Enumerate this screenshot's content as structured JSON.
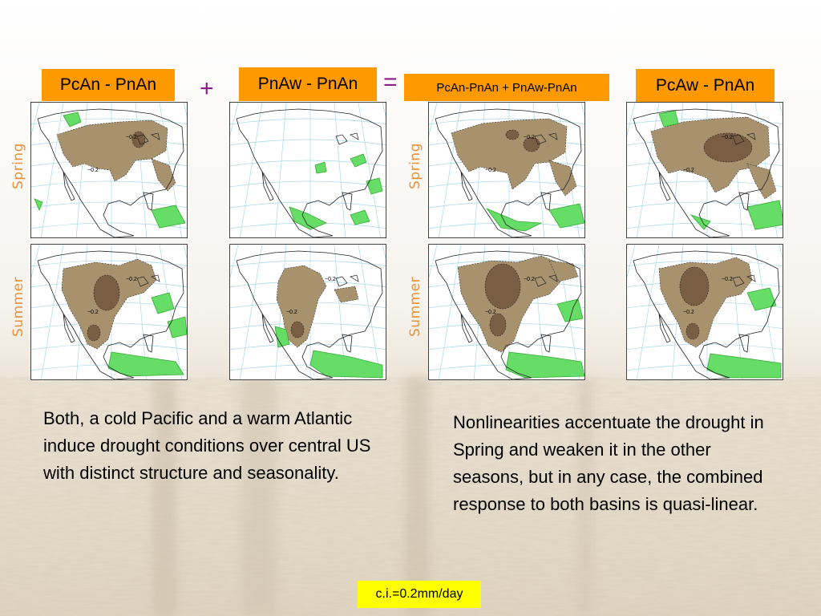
{
  "columns": [
    {
      "label": "PcAn - PnAn"
    },
    {
      "label": "PnAw - PnAn"
    },
    {
      "label": "PcAn-PnAn + PnAw-PnAn"
    },
    {
      "label": "PcAw - PnAn"
    }
  ],
  "operators": {
    "plus": "+",
    "equals": "="
  },
  "rows": [
    {
      "label": "Spring"
    },
    {
      "label": "Summer"
    }
  ],
  "contour_label": "−0.2",
  "text_left": "Both, a cold Pacific and a warm Atlantic  induce drought conditions over central US with distinct structure and seasonality.",
  "text_right": "Nonlinearities accentuate the drought in Spring and weaken it in the other seasons, but in any case, the combined response to both basins is quasi-linear.",
  "ci_label": "c.i.=0.2mm/day",
  "colors": {
    "label_bg": "#ff9900",
    "operator": "#8b1a8b",
    "row_label": "#e8913a",
    "dry": "#a8926e",
    "dry_dark": "#7a5e44",
    "wet": "#66dd66",
    "wet_dark": "#33aa33",
    "badge": "#ffff00"
  }
}
